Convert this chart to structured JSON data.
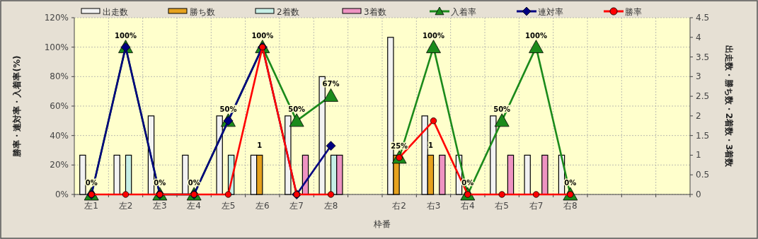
{
  "chart_data": {
    "type": "bar",
    "xlabel": "枠番",
    "ylabel": "勝率・連対率・入着率(%)",
    "y2label": "出走数・勝ち数・2着数・3着数",
    "categories": [
      "左1",
      "左2",
      "左3",
      "左4",
      "左5",
      "左6",
      "左7",
      "左8",
      null,
      "右2",
      "右3",
      "右4",
      "右5",
      "右7",
      "右8",
      null,
      null,
      null
    ],
    "series": [
      {
        "name": "出走数",
        "axis": "y2",
        "color": "#f2f2f2",
        "values": [
          1,
          1,
          2,
          1,
          2,
          1,
          2,
          3,
          null,
          4,
          2,
          1,
          2,
          1,
          1,
          null,
          null,
          null
        ]
      },
      {
        "name": "勝ち数",
        "axis": "y2",
        "color": "#e6a21e",
        "values": [
          0,
          0,
          0,
          0,
          0,
          1,
          0,
          0,
          null,
          1,
          1,
          0,
          0,
          0,
          0,
          null,
          null,
          null
        ],
        "value_labels": [
          null,
          null,
          null,
          null,
          null,
          "1",
          null,
          null,
          null,
          null,
          "1",
          null,
          null,
          null,
          null,
          null,
          null,
          null
        ]
      },
      {
        "name": "2着数",
        "axis": "y2",
        "color": "#c6efe6",
        "values": [
          0,
          1,
          0,
          0,
          1,
          0,
          0,
          1,
          null,
          0,
          0,
          0,
          0,
          0,
          0,
          null,
          null,
          null
        ]
      },
      {
        "name": "3着数",
        "axis": "y2",
        "color": "#ee93c2",
        "values": [
          0,
          0,
          0,
          0,
          0,
          0,
          1,
          1,
          null,
          0,
          1,
          0,
          1,
          1,
          0,
          null,
          null,
          null
        ]
      },
      {
        "name": "入着率",
        "type": "line",
        "marker": "triangle",
        "color": "#1b8a1b",
        "values": [
          0,
          100,
          0,
          0,
          50,
          100,
          50,
          67,
          null,
          25,
          100,
          0,
          50,
          100,
          0,
          null,
          null,
          null
        ],
        "value_labels": [
          "0%",
          "100%",
          "0%",
          "0%",
          "50%",
          "100%",
          "50%",
          "67%",
          null,
          "25%",
          "100%",
          "0%",
          "50%",
          "100%",
          "0%",
          null,
          null,
          null
        ]
      },
      {
        "name": "連対率",
        "type": "line",
        "marker": "diamond",
        "color": "#000080",
        "values": [
          0,
          100,
          0,
          0,
          50,
          100,
          0,
          33,
          null,
          null,
          null,
          null,
          null,
          null,
          null,
          null,
          null,
          null
        ]
      },
      {
        "name": "勝率",
        "type": "line",
        "marker": "circle",
        "color": "#ff0000",
        "values": [
          0,
          0,
          0,
          0,
          0,
          100,
          0,
          0,
          null,
          25,
          50,
          0,
          0,
          0,
          0,
          null,
          null,
          null
        ]
      }
    ],
    "ylim": [
      0,
      120
    ],
    "yticks": [
      {
        "value": 0,
        "label": "0%"
      },
      {
        "value": 20,
        "label": "20%"
      },
      {
        "value": 40,
        "label": "40%"
      },
      {
        "value": 60,
        "label": "60%"
      },
      {
        "value": 80,
        "label": "80%"
      },
      {
        "value": 100,
        "label": "100%"
      },
      {
        "value": 120,
        "label": "120%"
      }
    ],
    "y2lim": [
      0,
      4.5
    ],
    "y2ticks": [
      0,
      0.5,
      1,
      1.5,
      2,
      2.5,
      3,
      3.5,
      4,
      4.5
    ],
    "grid": true,
    "legend": "top"
  }
}
